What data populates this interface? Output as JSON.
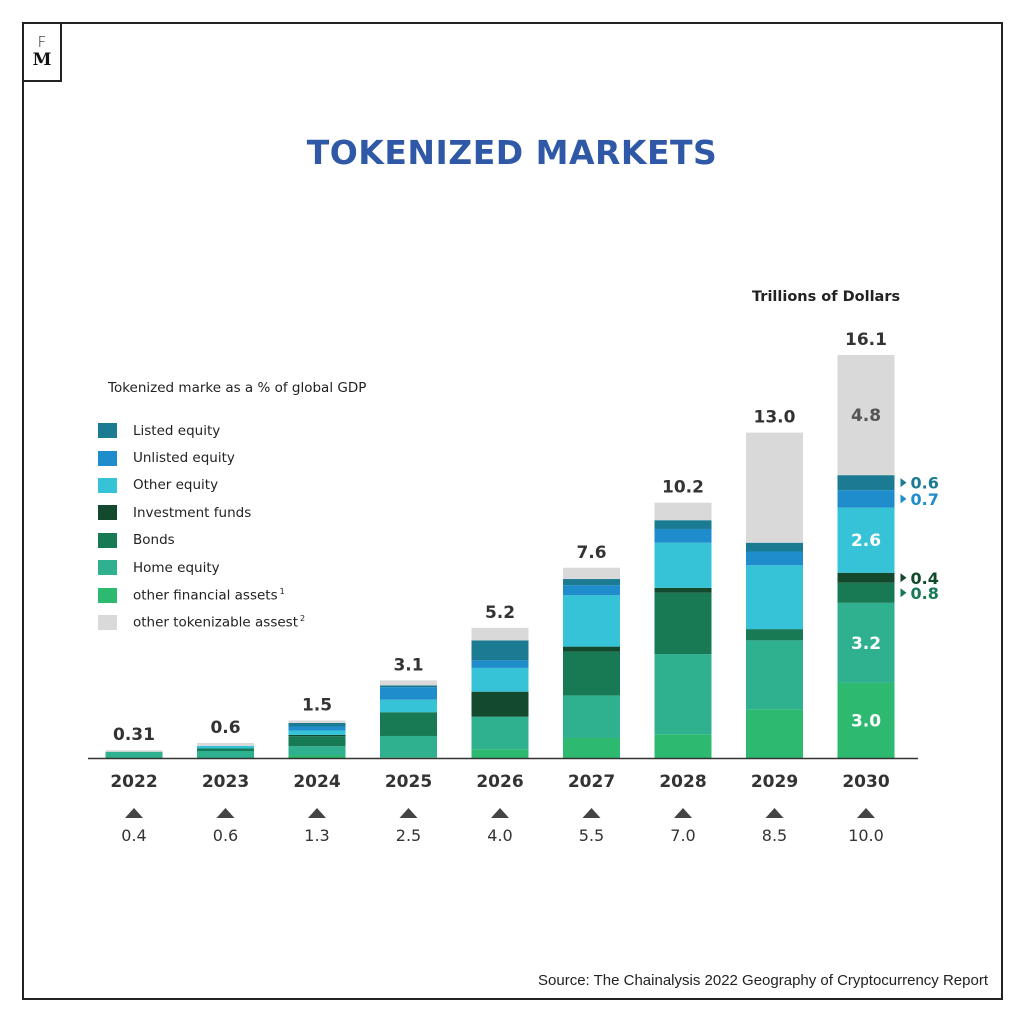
{
  "brand": {
    "logo_top": "F",
    "logo_bottom": "M"
  },
  "page_title": "TOKENIZED MARKETS",
  "units_label": "Trillions of Dollars",
  "legend_title": "Tokenized marke as a % of global GDP",
  "source": "Source: The Chainalysis 2022 Geography of Cryptocurrency Report",
  "colors": {
    "title": "#2f58a6",
    "listed_equity": "#1b7b93",
    "unlisted_equity": "#1f8ccc",
    "other_equity": "#36c3d8",
    "investment_funds": "#134a2e",
    "bonds": "#177a55",
    "home_equity": "#2fb08e",
    "other_financial_assets": "#2db96f",
    "other_tokenizable_assets": "#d9d9d9"
  },
  "legend": [
    {
      "label": "Listed equity",
      "sup": "",
      "color": "#1b7b93"
    },
    {
      "label": "Unlisted equity",
      "sup": "",
      "color": "#1f8ccc"
    },
    {
      "label": "Other equity",
      "sup": "",
      "color": "#36c3d8"
    },
    {
      "label": "Investment funds",
      "sup": "",
      "color": "#134a2e"
    },
    {
      "label": "Bonds",
      "sup": "",
      "color": "#177a55"
    },
    {
      "label": "Home equity",
      "sup": "",
      "color": "#2fb08e"
    },
    {
      "label": "other financial assets",
      "sup": "1",
      "color": "#2db96f"
    },
    {
      "label": "other tokenizable assest",
      "sup": "2",
      "color": "#d9d9d9"
    }
  ],
  "chart_data": {
    "type": "bar",
    "stacked": true,
    "title": "TOKENIZED MARKETS",
    "ylabel": "Trillions of Dollars",
    "ylim": [
      0,
      16.1
    ],
    "grid": false,
    "legend_position": "left",
    "categories": [
      "2022",
      "2023",
      "2024",
      "2025",
      "2026",
      "2027",
      "2028",
      "2029",
      "2030"
    ],
    "totals": [
      0.31,
      0.6,
      1.5,
      3.1,
      5.2,
      7.6,
      10.2,
      13.0,
      16.1
    ],
    "total_labels": [
      "0.31",
      "0.6",
      "1.5",
      "3.1",
      "5.2",
      "7.6",
      "10.2",
      "13.0",
      "16.1"
    ],
    "gdp_percent": [
      "0.4",
      "0.6",
      "1.3",
      "2.5",
      "4.0",
      "5.5",
      "7.0",
      "8.5",
      "10.0"
    ],
    "series": [
      {
        "name": "other financial assets",
        "color": "#2db96f",
        "values": [
          0.0,
          0.0,
          0.12,
          0.03,
          0.35,
          0.8,
          0.95,
          1.95,
          3.0
        ]
      },
      {
        "name": "Home equity",
        "color": "#2fb08e",
        "values": [
          0.25,
          0.28,
          0.35,
          0.85,
          1.3,
          1.7,
          3.2,
          2.75,
          3.2
        ]
      },
      {
        "name": "Bonds",
        "color": "#177a55",
        "values": [
          0.0,
          0.1,
          0.4,
          0.95,
          0.0,
          1.75,
          2.45,
          0.45,
          0.8
        ]
      },
      {
        "name": "Investment funds",
        "color": "#134a2e",
        "values": [
          0.0,
          0.0,
          0.05,
          0.0,
          1.0,
          0.2,
          0.2,
          0.0,
          0.4
        ]
      },
      {
        "name": "Other equity",
        "color": "#36c3d8",
        "values": [
          0.0,
          0.1,
          0.18,
          0.5,
          0.95,
          2.05,
          1.8,
          2.55,
          2.6
        ]
      },
      {
        "name": "Unlisted equity",
        "color": "#1f8ccc",
        "values": [
          0.0,
          0.0,
          0.16,
          0.5,
          0.3,
          0.4,
          0.55,
          0.55,
          0.7
        ]
      },
      {
        "name": "Listed equity",
        "color": "#1b7b93",
        "values": [
          0.0,
          0.0,
          0.14,
          0.07,
          0.8,
          0.25,
          0.35,
          0.35,
          0.6
        ]
      },
      {
        "name": "other tokenizable assest",
        "color": "#d9d9d9",
        "values": [
          0.06,
          0.12,
          0.1,
          0.2,
          0.5,
          0.45,
          0.7,
          4.4,
          4.8
        ]
      }
    ],
    "annotations_2030": {
      "inside": [
        {
          "series": "other tokenizable assest",
          "label": "4.8",
          "color": "#555555"
        },
        {
          "series": "Other equity",
          "label": "2.6",
          "color": "#ffffff"
        },
        {
          "series": "Home equity",
          "label": "3.2",
          "color": "#ffffff"
        },
        {
          "series": "other financial assets",
          "label": "3.0",
          "color": "#ffffff"
        }
      ],
      "outside": [
        {
          "series": "Listed equity",
          "label": "0.6",
          "color": "#1b7b93"
        },
        {
          "series": "Unlisted equity",
          "label": "0.7",
          "color": "#1f8ccc"
        },
        {
          "series": "Investment funds",
          "label": "0.4",
          "color": "#134a2e"
        },
        {
          "series": "Bonds",
          "label": "0.8",
          "color": "#177a55"
        }
      ]
    }
  }
}
